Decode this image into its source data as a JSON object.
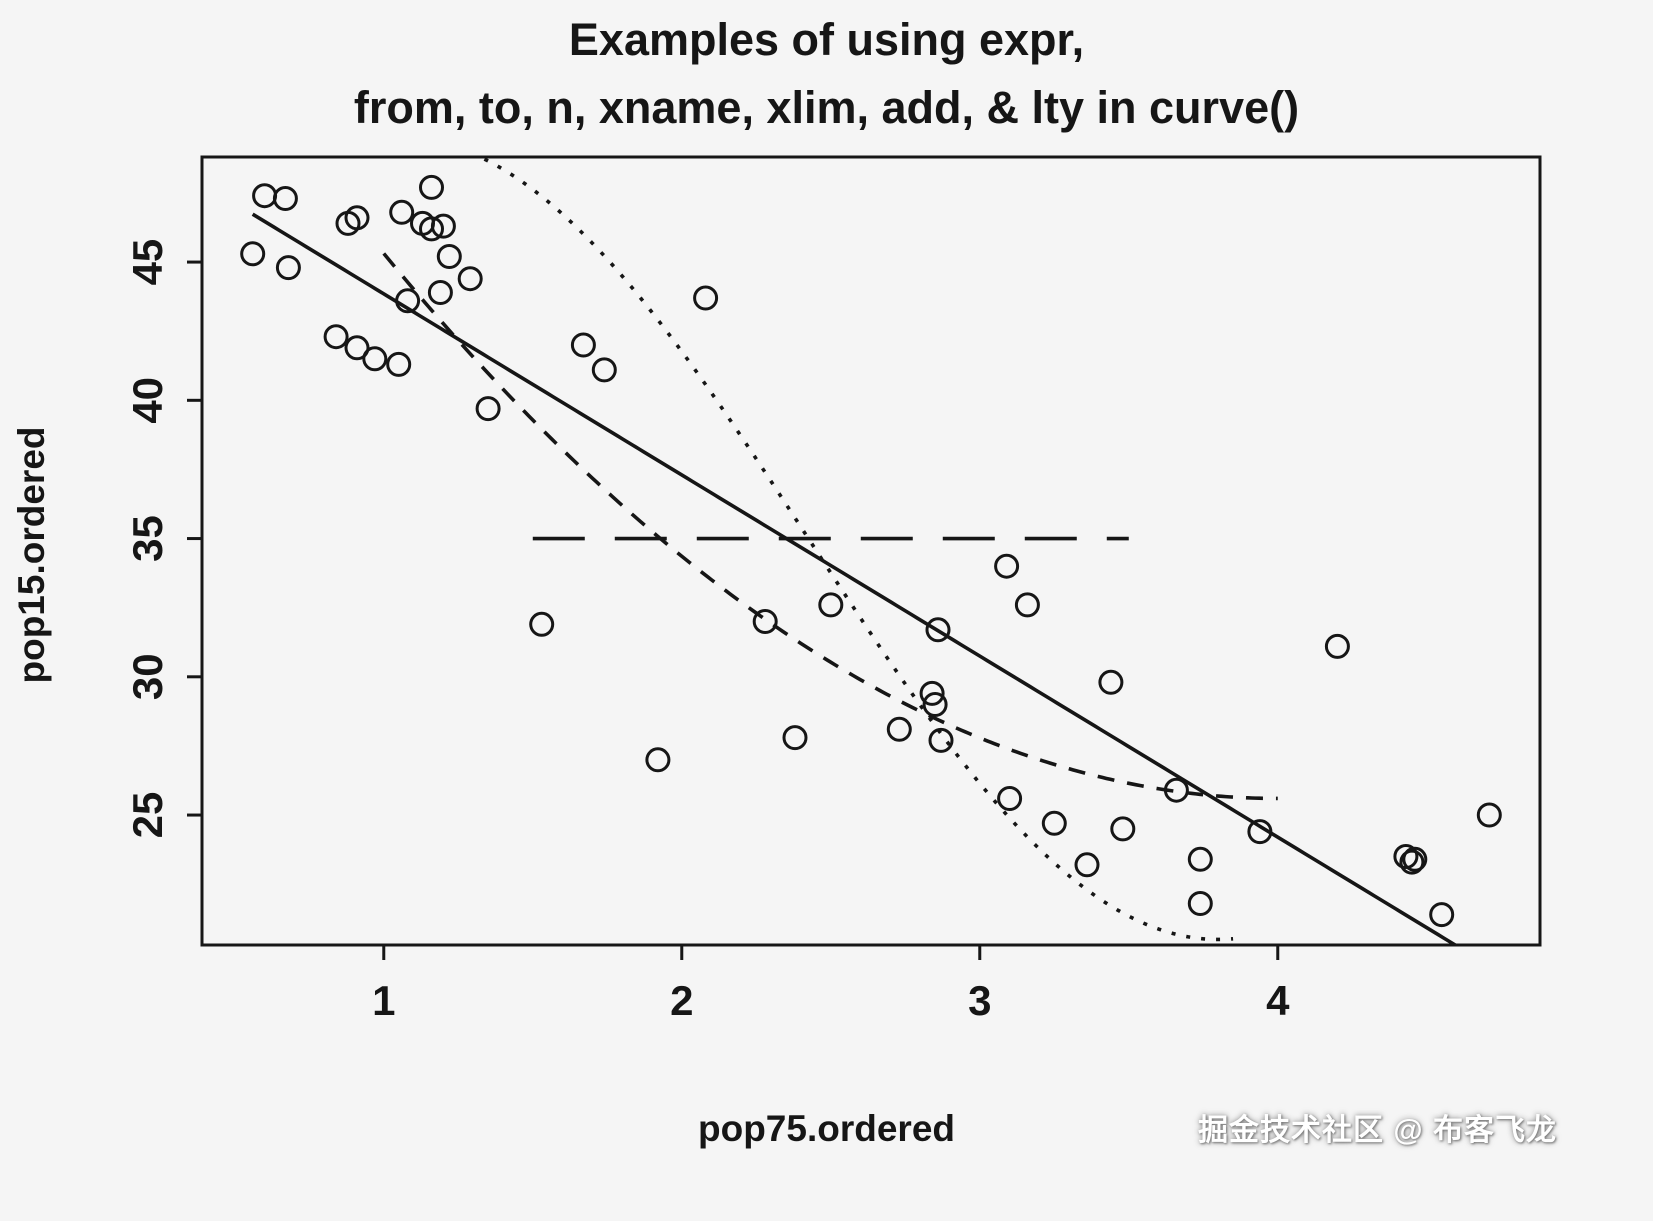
{
  "header": {
    "title_line1": "Examples of using expr,",
    "title_line2": "from, to, n, xname, xlim, add, & lty in curve()"
  },
  "watermark": {
    "text": "掘金技术社区 @ 布客飞龙"
  },
  "chart_data": {
    "type": "scatter",
    "title": "Examples of using expr, from, to, n, xname, xlim, add, & lty in curve()",
    "xlabel": "pop75.ordered",
    "ylabel": "pop15.ordered",
    "xlim": [
      0.39,
      4.88
    ],
    "ylim": [
      20.3,
      48.8
    ],
    "xticks": [
      1,
      2,
      3,
      4
    ],
    "yticks": [
      25,
      30,
      35,
      40,
      45
    ],
    "grid": false,
    "legend": "none",
    "ink_color": "#161616",
    "point_style": {
      "shape": "open-circle",
      "radius": 11,
      "stroke_width": 3
    },
    "points": [
      [
        0.6,
        47.4
      ],
      [
        0.67,
        47.3
      ],
      [
        0.56,
        45.3
      ],
      [
        0.68,
        44.8
      ],
      [
        0.88,
        46.4
      ],
      [
        0.91,
        46.6
      ],
      [
        1.06,
        46.8
      ],
      [
        1.13,
        46.4
      ],
      [
        1.2,
        46.3
      ],
      [
        1.16,
        47.7
      ],
      [
        1.16,
        46.2
      ],
      [
        0.84,
        42.3
      ],
      [
        0.91,
        41.9
      ],
      [
        0.97,
        41.5
      ],
      [
        1.05,
        41.3
      ],
      [
        1.08,
        43.6
      ],
      [
        1.19,
        43.9
      ],
      [
        1.22,
        45.2
      ],
      [
        1.29,
        44.4
      ],
      [
        1.35,
        39.7
      ],
      [
        1.53,
        31.9
      ],
      [
        1.67,
        42.0
      ],
      [
        1.74,
        41.1
      ],
      [
        2.08,
        43.7
      ],
      [
        1.92,
        27.0
      ],
      [
        2.28,
        32.0
      ],
      [
        2.38,
        27.8
      ],
      [
        2.5,
        32.6
      ],
      [
        2.73,
        28.1
      ],
      [
        2.84,
        29.4
      ],
      [
        2.85,
        29.0
      ],
      [
        2.86,
        31.7
      ],
      [
        2.87,
        27.7
      ],
      [
        3.09,
        34.0
      ],
      [
        3.16,
        32.6
      ],
      [
        3.1,
        25.6
      ],
      [
        3.25,
        24.7
      ],
      [
        3.36,
        23.2
      ],
      [
        3.44,
        29.8
      ],
      [
        3.48,
        24.5
      ],
      [
        3.66,
        25.9
      ],
      [
        3.74,
        23.4
      ],
      [
        3.74,
        21.8
      ],
      [
        3.94,
        24.4
      ],
      [
        4.2,
        31.1
      ],
      [
        4.43,
        23.5
      ],
      [
        4.45,
        23.3
      ],
      [
        4.46,
        23.4
      ],
      [
        4.55,
        21.4
      ],
      [
        4.71,
        25.0
      ]
    ],
    "curves": [
      {
        "name": "solid-regression-line",
        "lty": "solid",
        "type": "linear",
        "params": {
          "intercept": 50.4,
          "slope": -6.55
        },
        "from": 0.56,
        "to": 4.88
      },
      {
        "name": "dotted-cosine-curve",
        "lty": "dotted",
        "type": "cosine",
        "params": {
          "center": 35,
          "amplitude": 14.5,
          "peak_x": 1.05,
          "half_period": 2.75
        },
        "from": 0.85,
        "to": 3.85
      },
      {
        "name": "dashed-quadratic-curve",
        "lty": "dashed",
        "type": "quadratic",
        "params": {
          "a": 2.19,
          "vertex_x": 4.0,
          "vertex_y": 25.6
        },
        "from": 1.0,
        "to": 4.0
      },
      {
        "name": "longdash-horizontal-line",
        "lty": "longdash",
        "type": "constant",
        "params": {
          "value": 35
        },
        "from": 1.5,
        "to": 3.5
      }
    ]
  }
}
